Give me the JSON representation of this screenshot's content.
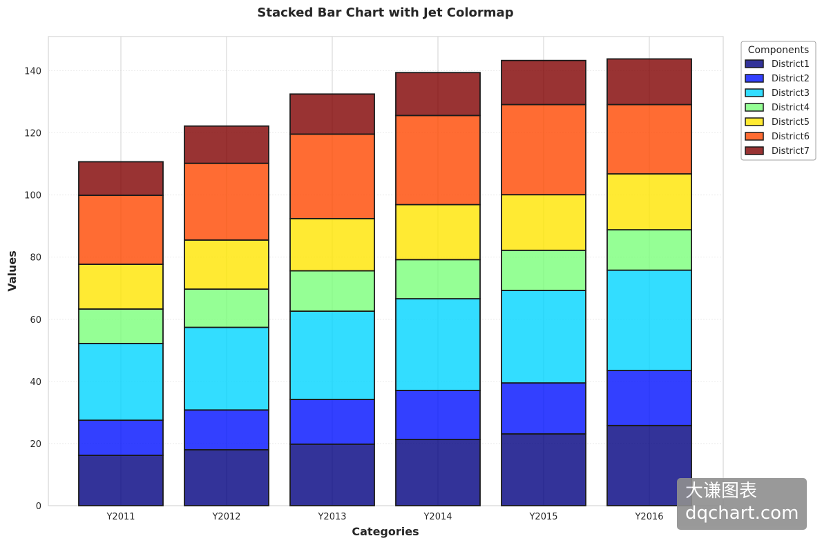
{
  "chart_data": {
    "type": "bar",
    "stacked": true,
    "title": "Stacked Bar Chart with Jet Colormap",
    "xlabel": "Categories",
    "ylabel": "Values",
    "ylim": [
      0,
      151
    ],
    "yticks": [
      0,
      20,
      40,
      60,
      80,
      100,
      120,
      140
    ],
    "grid": true,
    "legend_title": "Components",
    "legend_position": "outside top-right",
    "categories": [
      "Y2011",
      "Y2012",
      "Y2013",
      "Y2014",
      "Y2015",
      "Y2016"
    ],
    "series": [
      {
        "name": "District1",
        "color": "#00007f",
        "values": [
          16.2,
          18.0,
          19.8,
          21.3,
          23.1,
          25.8
        ]
      },
      {
        "name": "District2",
        "color": "#0010ff",
        "values": [
          11.3,
          12.8,
          14.4,
          15.8,
          16.4,
          17.7
        ]
      },
      {
        "name": "District3",
        "color": "#00d4ff",
        "values": [
          24.7,
          26.6,
          28.4,
          29.5,
          29.8,
          32.3
        ]
      },
      {
        "name": "District4",
        "color": "#7bff7b",
        "values": [
          11.1,
          12.3,
          13.0,
          12.6,
          12.9,
          13.0
        ]
      },
      {
        "name": "District5",
        "color": "#ffe500",
        "values": [
          14.4,
          15.8,
          16.8,
          17.7,
          17.9,
          18.0
        ]
      },
      {
        "name": "District6",
        "color": "#ff4700",
        "values": [
          22.2,
          24.7,
          27.2,
          28.7,
          29.0,
          22.3
        ]
      },
      {
        "name": "District7",
        "color": "#7f0000",
        "values": [
          10.8,
          12.0,
          12.9,
          13.8,
          14.2,
          14.7
        ]
      }
    ]
  },
  "watermark": {
    "line1": "大谦图表",
    "line2": "dqchart.com"
  }
}
